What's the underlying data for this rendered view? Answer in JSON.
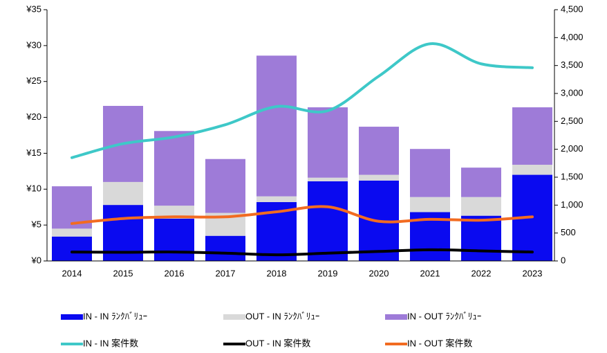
{
  "chart_data": {
    "type": "bar",
    "stacked": true,
    "categories": [
      "2014",
      "2015",
      "2016",
      "2017",
      "2018",
      "2019",
      "2020",
      "2021",
      "2022",
      "2023"
    ],
    "ylim": [
      0,
      35
    ],
    "yticks": [
      {
        "value": 0,
        "label": "¥0"
      },
      {
        "value": 5,
        "label": "¥5"
      },
      {
        "value": 10,
        "label": "¥10"
      },
      {
        "value": 15,
        "label": "¥15"
      },
      {
        "value": 20,
        "label": "¥20"
      },
      {
        "value": 25,
        "label": "¥25"
      },
      {
        "value": 30,
        "label": "¥30"
      },
      {
        "value": 35,
        "label": "¥35"
      }
    ],
    "y2lim": [
      0,
      4500
    ],
    "y2ticks": [
      0,
      500,
      {
        "value": 1000,
        "label": "1,000"
      },
      {
        "value": 1500,
        "label": "1,500"
      },
      {
        "value": 2000,
        "label": "2,000"
      },
      {
        "value": 2500,
        "label": "2,500"
      },
      {
        "value": 3000,
        "label": "3,000"
      },
      {
        "value": 3500,
        "label": "3,500"
      },
      {
        "value": 4000,
        "label": "4,000"
      },
      {
        "value": 4500,
        "label": "4,500"
      }
    ],
    "series": [
      {
        "name": "IN - IN ﾗﾝｸﾊﾞﾘｭｰ",
        "type": "bar",
        "color": "#0a0af0",
        "values": [
          3.4,
          7.8,
          5.9,
          3.5,
          8.2,
          11.1,
          11.2,
          6.8,
          6.3,
          12.0
        ]
      },
      {
        "name": "OUT - IN ﾗﾝｸﾊﾞﾘｭｰ",
        "type": "bar",
        "color": "#d9d9d9",
        "values": [
          1.1,
          3.2,
          1.8,
          3.2,
          0.8,
          0.5,
          0.8,
          2.1,
          2.6,
          1.4
        ]
      },
      {
        "name": "IN - OUT ﾗﾝｸﾊﾞﾘｭｰ",
        "type": "bar",
        "color": "#9e7bd8",
        "values": [
          5.9,
          10.6,
          10.4,
          7.5,
          19.6,
          9.8,
          6.7,
          6.7,
          4.1,
          8.0
        ]
      },
      {
        "name": "IN - IN 案件数",
        "type": "line",
        "axis": "y2",
        "color": "#3ec8c8",
        "values": [
          1850,
          2100,
          2220,
          2440,
          2765,
          2690,
          3310,
          3890,
          3530,
          3460
        ]
      },
      {
        "name": "OUT - IN 案件数",
        "type": "line",
        "axis": "y2",
        "color": "#000000",
        "values": [
          160,
          155,
          160,
          140,
          110,
          140,
          170,
          200,
          180,
          160
        ]
      },
      {
        "name": "IN - OUT 案件数",
        "type": "line",
        "axis": "y2",
        "color": "#f26b21",
        "values": [
          670,
          760,
          790,
          790,
          880,
          970,
          710,
          745,
          730,
          790
        ]
      }
    ]
  }
}
